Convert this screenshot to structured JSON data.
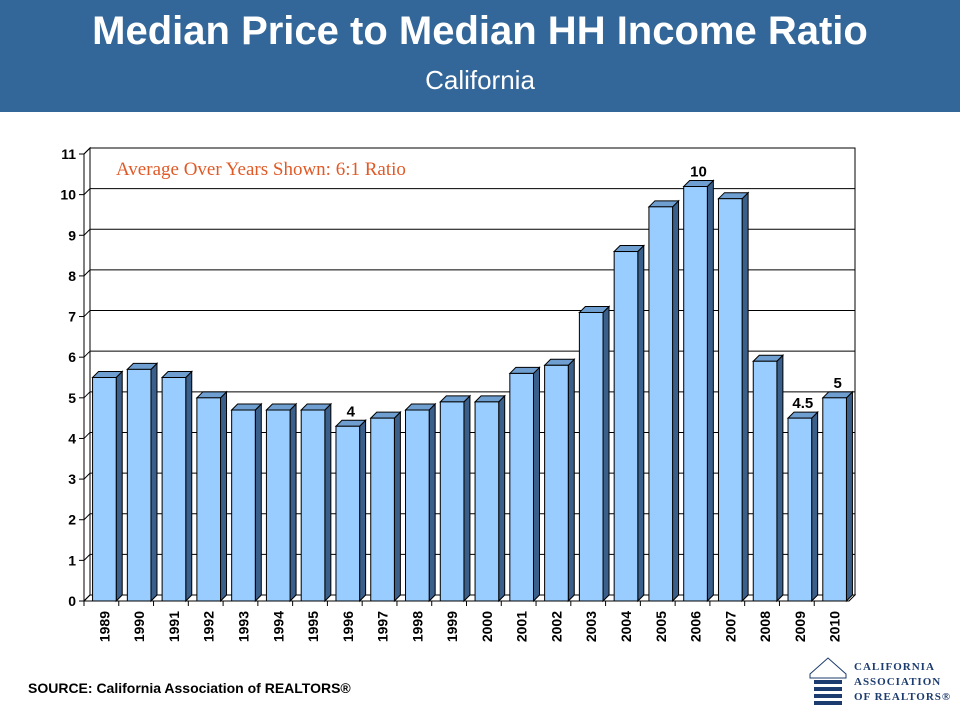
{
  "header": {
    "title": "Median Price to Median HH Income Ratio",
    "subtitle": "California"
  },
  "chart_data": {
    "type": "bar",
    "categories": [
      "1989",
      "1990",
      "1991",
      "1992",
      "1993",
      "1994",
      "1995",
      "1996",
      "1997",
      "1998",
      "1999",
      "2000",
      "2001",
      "2002",
      "2003",
      "2004",
      "2005",
      "2006",
      "2007",
      "2008",
      "2009",
      "2010"
    ],
    "values": [
      5.5,
      5.7,
      5.5,
      5.0,
      4.7,
      4.7,
      4.7,
      4.3,
      4.5,
      4.7,
      4.9,
      4.9,
      5.6,
      5.8,
      7.1,
      8.6,
      9.7,
      10.2,
      9.9,
      5.9,
      4.5,
      5.0
    ],
    "data_labels": [
      {
        "category": "1996",
        "text": "4"
      },
      {
        "category": "2006",
        "text": "10"
      },
      {
        "category": "2009",
        "text": "4.5"
      },
      {
        "category": "2010",
        "text": "5"
      }
    ],
    "yticks": [
      "0",
      "1",
      "2",
      "3",
      "4",
      "5",
      "6",
      "7",
      "8",
      "9",
      "10",
      "11"
    ],
    "ylim": [
      0,
      11
    ],
    "annotation": "Average Over Years Shown: 6:1 Ratio",
    "grid": true,
    "bar_color": "#99ccff",
    "bar_side_color": "#3a5f8a",
    "bar_top_color": "#6f9fd0",
    "annotation_color": "#e05a28"
  },
  "footer": {
    "source": "SOURCE: California Association of REALTORS®"
  },
  "logo": {
    "line1": "CALIFORNIA",
    "line2": "ASSOCIATION",
    "line3": "OF REALTORS®"
  },
  "colors": {
    "header_band": "#336699"
  }
}
